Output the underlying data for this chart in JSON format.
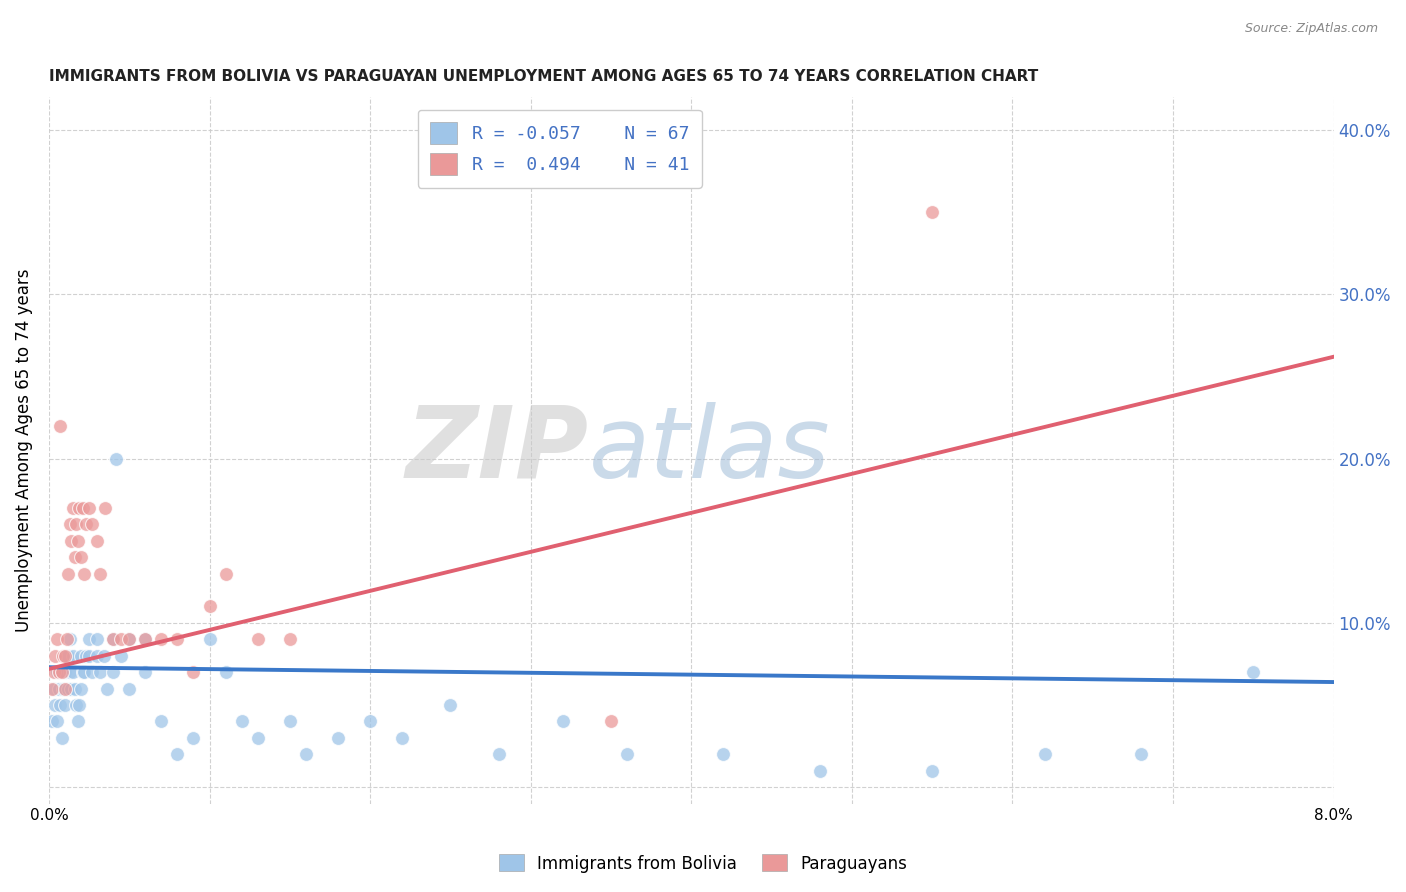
{
  "title": "IMMIGRANTS FROM BOLIVIA VS PARAGUAYAN UNEMPLOYMENT AMONG AGES 65 TO 74 YEARS CORRELATION CHART",
  "source": "Source: ZipAtlas.com",
  "ylabel": "Unemployment Among Ages 65 to 74 years",
  "xmin": 0.0,
  "xmax": 0.08,
  "ymin": -0.01,
  "ymax": 0.42,
  "yticks_right": [
    0.0,
    0.1,
    0.2,
    0.3,
    0.4
  ],
  "xticks": [
    0.0,
    0.01,
    0.02,
    0.03,
    0.04,
    0.05,
    0.06,
    0.07,
    0.08
  ],
  "legend": {
    "bolivia_r": "R = -0.057",
    "bolivia_n": "N = 67",
    "paraguay_r": "R =  0.494",
    "paraguay_n": "N = 41"
  },
  "blue_color": "#9fc5e8",
  "pink_color": "#ea9999",
  "blue_line_color": "#3a78c9",
  "pink_line_color": "#e06070",
  "watermark_zip": "ZIP",
  "watermark_atlas": "atlas",
  "bolivia_x": [
    0.0002,
    0.0003,
    0.0004,
    0.0005,
    0.0005,
    0.0006,
    0.0007,
    0.0008,
    0.0008,
    0.0009,
    0.001,
    0.001,
    0.001,
    0.0012,
    0.0012,
    0.0013,
    0.0013,
    0.0014,
    0.0015,
    0.0015,
    0.0016,
    0.0017,
    0.0018,
    0.0019,
    0.002,
    0.002,
    0.0021,
    0.0022,
    0.0023,
    0.0025,
    0.0025,
    0.0027,
    0.003,
    0.003,
    0.0032,
    0.0034,
    0.0036,
    0.004,
    0.004,
    0.0042,
    0.0045,
    0.005,
    0.005,
    0.006,
    0.006,
    0.007,
    0.008,
    0.009,
    0.01,
    0.011,
    0.012,
    0.013,
    0.015,
    0.016,
    0.018,
    0.02,
    0.022,
    0.025,
    0.028,
    0.032,
    0.036,
    0.042,
    0.048,
    0.055,
    0.062,
    0.068,
    0.075
  ],
  "bolivia_y": [
    0.04,
    0.06,
    0.05,
    0.07,
    0.04,
    0.06,
    0.05,
    0.03,
    0.07,
    0.06,
    0.07,
    0.05,
    0.08,
    0.06,
    0.08,
    0.07,
    0.09,
    0.06,
    0.07,
    0.08,
    0.06,
    0.05,
    0.04,
    0.05,
    0.06,
    0.08,
    0.07,
    0.07,
    0.08,
    0.08,
    0.09,
    0.07,
    0.08,
    0.09,
    0.07,
    0.08,
    0.06,
    0.07,
    0.09,
    0.2,
    0.08,
    0.09,
    0.06,
    0.09,
    0.07,
    0.04,
    0.02,
    0.03,
    0.09,
    0.07,
    0.04,
    0.03,
    0.04,
    0.02,
    0.03,
    0.04,
    0.03,
    0.05,
    0.02,
    0.04,
    0.02,
    0.02,
    0.01,
    0.01,
    0.02,
    0.02,
    0.07
  ],
  "paraguay_x": [
    0.0002,
    0.0003,
    0.0004,
    0.0005,
    0.0006,
    0.0007,
    0.0008,
    0.0009,
    0.001,
    0.001,
    0.0011,
    0.0012,
    0.0013,
    0.0014,
    0.0015,
    0.0016,
    0.0017,
    0.0018,
    0.0019,
    0.002,
    0.0021,
    0.0022,
    0.0023,
    0.0025,
    0.0027,
    0.003,
    0.0032,
    0.0035,
    0.004,
    0.0045,
    0.005,
    0.006,
    0.007,
    0.008,
    0.009,
    0.01,
    0.011,
    0.013,
    0.015,
    0.035,
    0.055
  ],
  "paraguay_y": [
    0.06,
    0.07,
    0.08,
    0.09,
    0.07,
    0.22,
    0.07,
    0.08,
    0.08,
    0.06,
    0.09,
    0.13,
    0.16,
    0.15,
    0.17,
    0.14,
    0.16,
    0.15,
    0.17,
    0.14,
    0.17,
    0.13,
    0.16,
    0.17,
    0.16,
    0.15,
    0.13,
    0.17,
    0.09,
    0.09,
    0.09,
    0.09,
    0.09,
    0.09,
    0.07,
    0.11,
    0.13,
    0.09,
    0.09,
    0.04,
    0.35
  ],
  "blue_trend_x": [
    0.0,
    0.08
  ],
  "blue_trend_y": [
    0.073,
    0.064
  ],
  "pink_trend_x": [
    0.0,
    0.08
  ],
  "pink_trend_y": [
    0.072,
    0.262
  ]
}
